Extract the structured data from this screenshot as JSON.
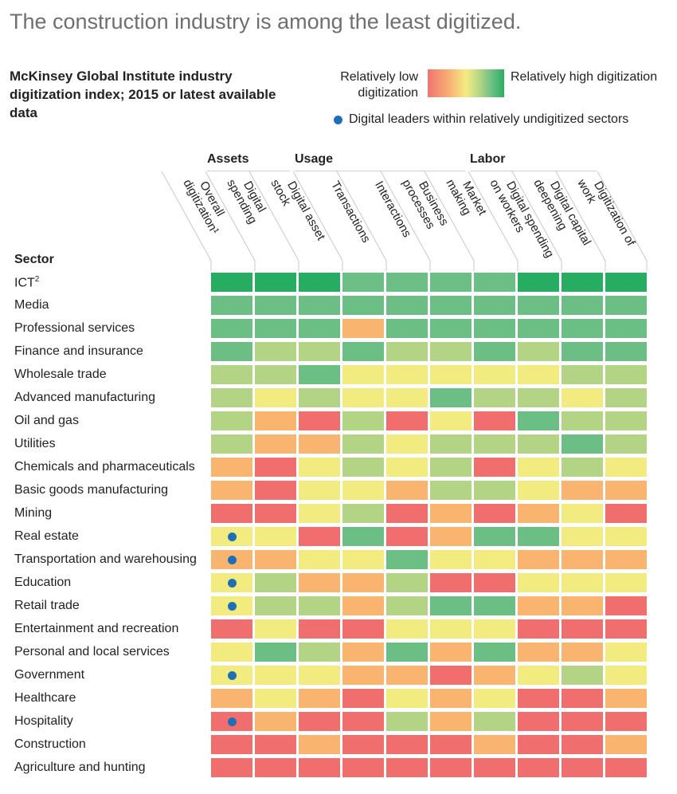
{
  "headline": "The construction industry is among the least digitized.",
  "subtitle": "McKinsey Global Institute industry digitization index; 2015 or latest available data",
  "legend": {
    "low_label": "Relatively low digitization",
    "high_label": "Relatively high digitization",
    "dot_label": "Digital leaders within relatively undigitized sectors",
    "dot_color": "#1f6fb8"
  },
  "chart_data": {
    "type": "heatmap",
    "title": "McKinsey Global Institute industry digitization index; 2015 or latest available data",
    "scale": {
      "min_label": "Relatively low digitization",
      "max_label": "Relatively high digitization",
      "levels": [
        1,
        2,
        3,
        4,
        5,
        6
      ],
      "colors": {
        "1": "#f06e6e",
        "2": "#f9b46f",
        "3": "#f2ec80",
        "4": "#b3d485",
        "5": "#6cbf84",
        "6": "#27ad61"
      }
    },
    "row_header": "Sector",
    "groups": [
      {
        "label": "Assets",
        "columns": [
          1,
          2
        ]
      },
      {
        "label": "Usage",
        "columns": [
          3,
          4,
          5,
          6
        ]
      },
      {
        "label": "Labor",
        "columns": [
          7,
          8,
          9
        ]
      }
    ],
    "columns": [
      "Overall digitization¹",
      "Digital spending",
      "Digital asset stock",
      "Transactions",
      "Interactions",
      "Business processes",
      "Market making",
      "Digital spending on workers",
      "Digital capital deepening",
      "Digitization of work"
    ],
    "rows": [
      {
        "sector": "ICT",
        "sup": "2",
        "values": [
          6,
          6,
          6,
          5,
          5,
          5,
          5,
          6,
          6,
          6
        ],
        "leader": false
      },
      {
        "sector": "Media",
        "sup": "",
        "values": [
          5,
          5,
          5,
          5,
          5,
          5,
          5,
          5,
          5,
          5
        ],
        "leader": false
      },
      {
        "sector": "Professional services",
        "sup": "",
        "values": [
          5,
          5,
          5,
          2,
          5,
          5,
          5,
          5,
          5,
          5
        ],
        "leader": false
      },
      {
        "sector": "Finance and insurance",
        "sup": "",
        "values": [
          5,
          4,
          4,
          5,
          4,
          4,
          5,
          4,
          5,
          5
        ],
        "leader": false
      },
      {
        "sector": "Wholesale trade",
        "sup": "",
        "values": [
          4,
          4,
          5,
          3,
          3,
          3,
          3,
          3,
          4,
          4
        ],
        "leader": false
      },
      {
        "sector": "Advanced manufacturing",
        "sup": "",
        "values": [
          4,
          3,
          4,
          3,
          3,
          5,
          4,
          4,
          3,
          4
        ],
        "leader": false
      },
      {
        "sector": "Oil and gas",
        "sup": "",
        "values": [
          4,
          2,
          1,
          4,
          1,
          3,
          1,
          5,
          4,
          4
        ],
        "leader": false
      },
      {
        "sector": "Utilities",
        "sup": "",
        "values": [
          4,
          2,
          2,
          4,
          3,
          4,
          4,
          4,
          5,
          4
        ],
        "leader": false
      },
      {
        "sector": "Chemicals and pharmaceuticals",
        "sup": "",
        "values": [
          2,
          1,
          3,
          4,
          3,
          4,
          1,
          3,
          4,
          3
        ],
        "leader": false
      },
      {
        "sector": "Basic goods manufacturing",
        "sup": "",
        "values": [
          2,
          1,
          3,
          3,
          2,
          4,
          4,
          3,
          2,
          2
        ],
        "leader": false
      },
      {
        "sector": "Mining",
        "sup": "",
        "values": [
          1,
          1,
          3,
          4,
          1,
          2,
          1,
          2,
          3,
          1
        ],
        "leader": false
      },
      {
        "sector": "Real estate",
        "sup": "",
        "values": [
          3,
          3,
          1,
          5,
          1,
          2,
          5,
          5,
          3,
          3
        ],
        "leader": true
      },
      {
        "sector": "Transportation and warehousing",
        "sup": "",
        "values": [
          2,
          2,
          3,
          3,
          5,
          3,
          3,
          2,
          2,
          2
        ],
        "leader": true
      },
      {
        "sector": "Education",
        "sup": "",
        "values": [
          3,
          4,
          2,
          2,
          4,
          1,
          1,
          3,
          3,
          3
        ],
        "leader": true
      },
      {
        "sector": "Retail trade",
        "sup": "",
        "values": [
          3,
          4,
          4,
          2,
          4,
          5,
          5,
          2,
          2,
          1
        ],
        "leader": true
      },
      {
        "sector": "Entertainment and recreation",
        "sup": "",
        "values": [
          1,
          3,
          1,
          1,
          3,
          3,
          3,
          1,
          1,
          1
        ],
        "leader": false
      },
      {
        "sector": "Personal and local services",
        "sup": "",
        "values": [
          3,
          5,
          4,
          2,
          5,
          2,
          5,
          2,
          2,
          3
        ],
        "leader": false
      },
      {
        "sector": "Government",
        "sup": "",
        "values": [
          3,
          3,
          3,
          2,
          2,
          1,
          2,
          3,
          4,
          3
        ],
        "leader": true
      },
      {
        "sector": "Healthcare",
        "sup": "",
        "values": [
          2,
          3,
          2,
          1,
          3,
          2,
          3,
          1,
          1,
          2
        ],
        "leader": false
      },
      {
        "sector": "Hospitality",
        "sup": "",
        "values": [
          1,
          2,
          1,
          1,
          4,
          2,
          4,
          1,
          1,
          1
        ],
        "leader": true
      },
      {
        "sector": "Construction",
        "sup": "",
        "values": [
          1,
          1,
          2,
          1,
          1,
          1,
          2,
          1,
          1,
          2
        ],
        "leader": false
      },
      {
        "sector": "Agriculture and hunting",
        "sup": "",
        "values": [
          1,
          1,
          1,
          1,
          1,
          1,
          1,
          1,
          1,
          1
        ],
        "leader": false
      }
    ]
  }
}
